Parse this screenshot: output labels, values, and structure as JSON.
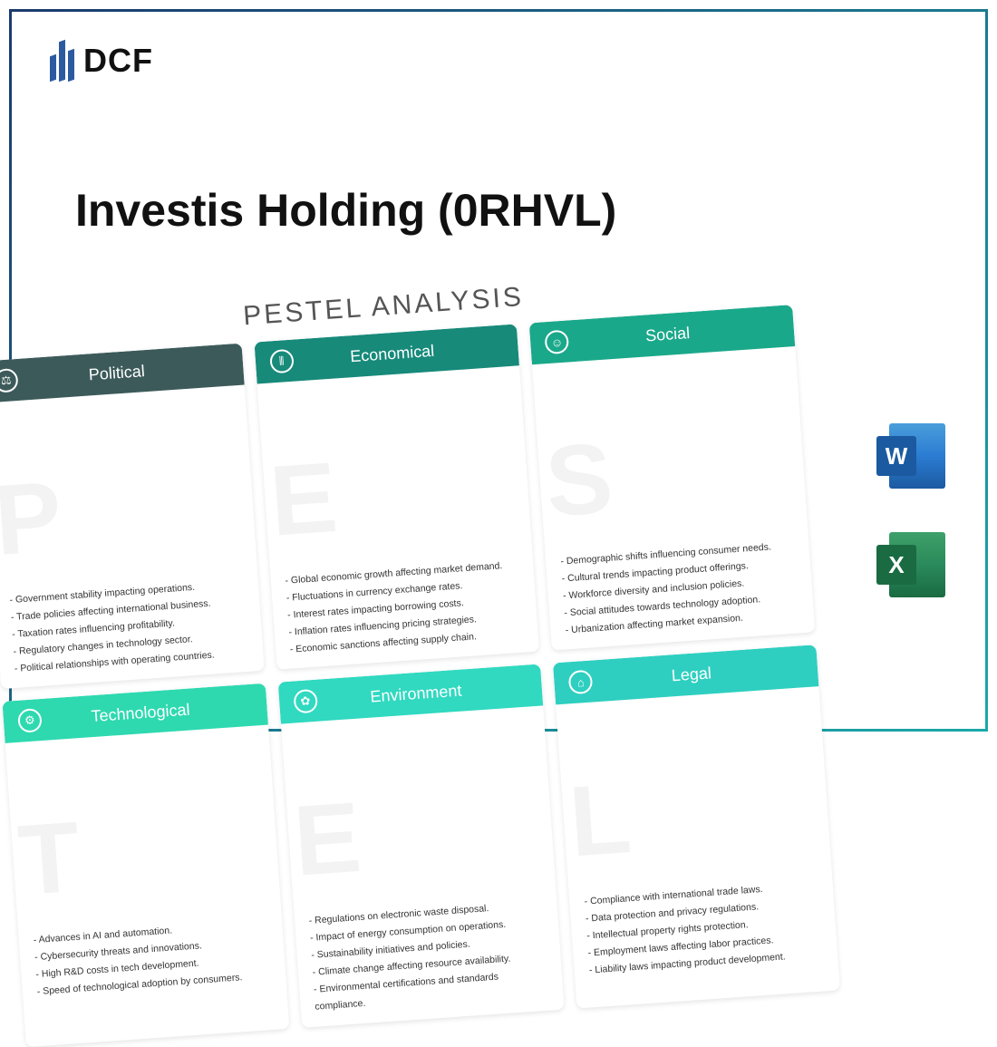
{
  "logo_text": "DCF",
  "title": "Investis Holding (0RHVL)",
  "pestel": {
    "heading": "PESTEL ANALYSIS",
    "cards": [
      {
        "title": "Political",
        "letter": "P",
        "header_class": "hd-dark",
        "icon_glyph": "⚖",
        "items": [
          "- Government stability impacting operations.",
          "- Trade policies affecting international business.",
          "- Taxation rates influencing profitability.",
          "- Regulatory changes in technology sector.",
          "- Political relationships with operating countries."
        ]
      },
      {
        "title": "Economical",
        "letter": "E",
        "header_class": "hd-teal",
        "icon_glyph": "⫴",
        "items": [
          "- Global economic growth affecting market demand.",
          "- Fluctuations in currency exchange rates.",
          "- Interest rates impacting borrowing costs.",
          "- Inflation rates influencing pricing strategies.",
          "- Economic sanctions affecting supply chain."
        ]
      },
      {
        "title": "Social",
        "letter": "S",
        "header_class": "hd-green",
        "icon_glyph": "☺",
        "items": [
          "- Demographic shifts influencing consumer needs.",
          "- Cultural trends impacting product offerings.",
          "- Workforce diversity and inclusion policies.",
          "- Social attitudes towards technology adoption.",
          "- Urbanization affecting market expansion."
        ]
      },
      {
        "title": "Technological",
        "letter": "T",
        "header_class": "hd-mint",
        "icon_glyph": "⚙",
        "items": [
          "- Advances in AI and automation.",
          "- Cybersecurity threats and innovations.",
          "- High R&D costs in tech development.",
          "- Speed of technological adoption by consumers."
        ]
      },
      {
        "title": "Environment",
        "letter": "E",
        "header_class": "hd-mint2",
        "icon_glyph": "✿",
        "items": [
          "- Regulations on electronic waste disposal.",
          "- Impact of energy consumption on operations.",
          "- Sustainability initiatives and policies.",
          "- Climate change affecting resource availability.",
          "- Environmental certifications and standards compliance."
        ]
      },
      {
        "title": "Legal",
        "letter": "L",
        "header_class": "hd-aqua",
        "icon_glyph": "⌂",
        "items": [
          "- Compliance with international trade laws.",
          "- Data protection and privacy regulations.",
          "- Intellectual property rights protection.",
          "- Employment laws affecting labor practices.",
          "- Liability laws impacting product development."
        ]
      }
    ]
  },
  "file_icons": {
    "word_letter": "W",
    "excel_letter": "X"
  },
  "colors": {
    "frame_start": "#1a3a6e",
    "frame_end": "#1aa8a8",
    "logo_blue": "#2c5aa0"
  }
}
